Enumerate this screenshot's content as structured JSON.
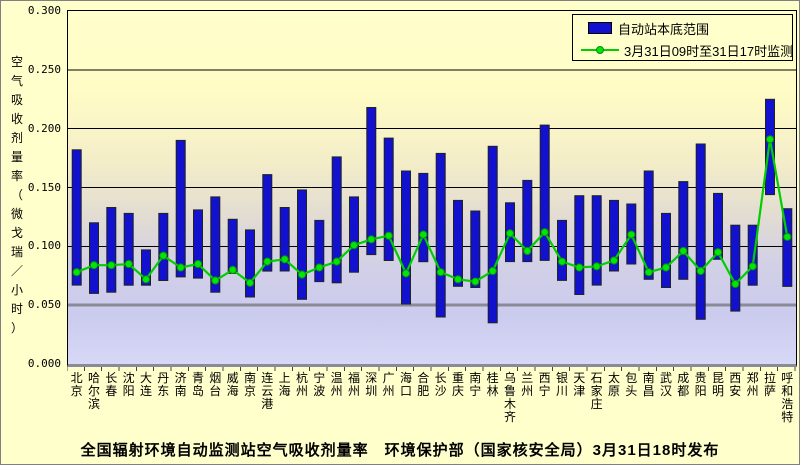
{
  "chart_data": {
    "type": "bar",
    "subtype": "floating-range-bars-with-line-overlay",
    "title": "全国辐射环境自动监测站空气吸收剂量率　环境保护部（国家核安全局）3月31日18时发布",
    "ylabel": "空气吸收剂量率（微戈瑞／小时）",
    "ylim": [
      0,
      0.3
    ],
    "ytick_step": 0.05,
    "ytick_decimals": 3,
    "grid": "horizontal",
    "legend_position": "top-right",
    "categories": [
      "北京",
      "哈尔滨",
      "长春",
      "沈阳",
      "大连",
      "丹东",
      "济南",
      "青岛",
      "烟台",
      "威海",
      "南京",
      "连云港",
      "上海",
      "杭州",
      "宁波",
      "温州",
      "福州",
      "深圳",
      "广州",
      "海口",
      "合肥",
      "长沙",
      "重庆",
      "南宁",
      "桂林",
      "乌鲁木齐",
      "兰州",
      "西宁",
      "银川",
      "天津",
      "石家庄",
      "太原",
      "包头",
      "南昌",
      "武汉",
      "成都",
      "贵阳",
      "昆明",
      "西安",
      "郑州",
      "拉萨",
      "呼和浩特"
    ],
    "series": [
      {
        "name": "自动站本底范围",
        "type": "range-bar",
        "color": "#1111CE",
        "low": [
          0.067,
          0.06,
          0.061,
          0.067,
          0.067,
          0.071,
          0.074,
          0.073,
          0.061,
          0.077,
          0.057,
          0.079,
          0.079,
          0.055,
          0.07,
          0.069,
          0.078,
          0.093,
          0.088,
          0.051,
          0.087,
          0.04,
          0.066,
          0.065,
          0.035,
          0.087,
          0.087,
          0.088,
          0.071,
          0.059,
          0.067,
          0.079,
          0.085,
          0.072,
          0.065,
          0.072,
          0.038,
          0.089,
          0.045,
          0.067,
          0.144,
          0.066
        ],
        "high": [
          0.182,
          0.12,
          0.133,
          0.128,
          0.097,
          0.128,
          0.19,
          0.131,
          0.142,
          0.123,
          0.114,
          0.161,
          0.133,
          0.148,
          0.122,
          0.176,
          0.142,
          0.218,
          0.192,
          0.164,
          0.162,
          0.179,
          0.139,
          0.13,
          0.185,
          0.137,
          0.156,
          0.203,
          0.122,
          0.143,
          0.143,
          0.139,
          0.136,
          0.164,
          0.128,
          0.155,
          0.187,
          0.145,
          0.118,
          0.118,
          0.225,
          0.132
        ]
      },
      {
        "name": "3月31日09时至31日17时监测",
        "type": "line",
        "color": "#00CE00",
        "marker_color": "#00E606",
        "values": [
          0.078,
          0.084,
          0.084,
          0.085,
          0.072,
          0.092,
          0.082,
          0.085,
          0.071,
          0.08,
          0.069,
          0.087,
          0.089,
          0.076,
          0.082,
          0.087,
          0.101,
          0.106,
          0.109,
          0.077,
          0.11,
          0.078,
          0.072,
          0.07,
          0.079,
          0.111,
          0.096,
          0.112,
          0.087,
          0.082,
          0.083,
          0.088,
          0.11,
          0.078,
          0.082,
          0.096,
          0.079,
          0.095,
          0.068,
          0.083,
          0.191,
          0.108
        ]
      }
    ]
  },
  "colors": {
    "chart_bg": "#FFFFCC",
    "bar_fill": "#1111CE",
    "bar_border": "#222222",
    "line": "#00CE00",
    "marker": "#00E606",
    "marker_border": "#118811",
    "gridline": "#000000",
    "axis_emphasis": "#8A8A99"
  }
}
